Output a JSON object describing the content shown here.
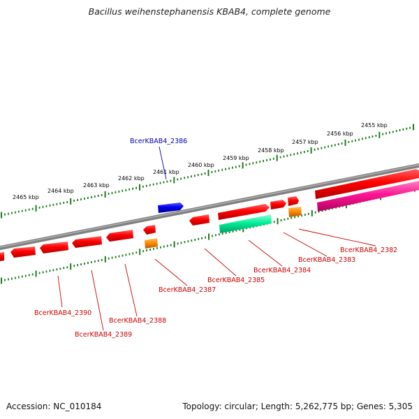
{
  "title": "Bacillus weihenstephanensis KBAB4, complete genome",
  "footer": {
    "accession": "Accession: NC_010184",
    "summary": "Topology: circular; Length: 5,262,775 bp; Genes: 5,305"
  },
  "colors": {
    "backbone": "#808080",
    "ticks": "#1e7a1e",
    "gene_red": "#ff0000",
    "gene_blue": "#0000ee",
    "gene_orange": "#ff8c00",
    "gene_green": "#00ee99",
    "gene_magenta": "#ff1493",
    "label_red": "#cc0000",
    "label_blue": "#0000aa"
  },
  "scale_labels": [
    {
      "text": "2455 kbp",
      "kbp": 2455
    },
    {
      "text": "2456 kbp",
      "kbp": 2456
    },
    {
      "text": "2457 kbp",
      "kbp": 2457
    },
    {
      "text": "2458 kbp",
      "kbp": 2458
    },
    {
      "text": "2459 kbp",
      "kbp": 2459
    },
    {
      "text": "2460 kbp",
      "kbp": 2460
    },
    {
      "text": "2461 kbp",
      "kbp": 2461
    },
    {
      "text": "2462 kbp",
      "kbp": 2462
    },
    {
      "text": "2463 kbp",
      "kbp": 2463
    },
    {
      "text": "2464 kbp",
      "kbp": 2464
    },
    {
      "text": "2465 kbp",
      "kbp": 2465
    }
  ],
  "gene_labels": [
    {
      "text": "BcerKBAB4_2386",
      "color": "label_blue"
    },
    {
      "text": "BcerKBAB4_2382",
      "color": "label_red"
    },
    {
      "text": "BcerKBAB4_2383",
      "color": "label_red"
    },
    {
      "text": "BcerKBAB4_2384",
      "color": "label_red"
    },
    {
      "text": "BcerKBAB4_2385",
      "color": "label_red"
    },
    {
      "text": "BcerKBAB4_2387",
      "color": "label_red"
    },
    {
      "text": "BcerKBAB4_2388",
      "color": "label_red"
    },
    {
      "text": "BcerKBAB4_2389",
      "color": "label_red"
    },
    {
      "text": "BcerKBAB4_2390",
      "color": "label_red"
    }
  ]
}
